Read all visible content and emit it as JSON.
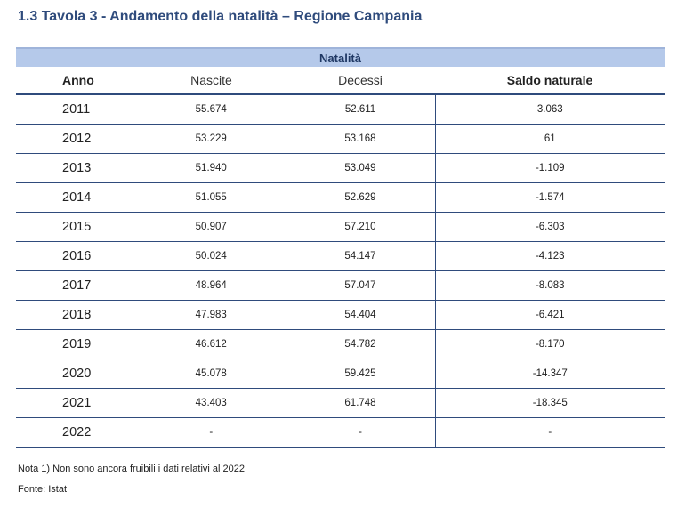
{
  "title": "1.3 Tavola 3 - Andamento della natalità – Regione Campania",
  "table": {
    "group_header": "Natalità",
    "columns": [
      "Anno",
      "Nascite",
      "Decessi",
      "Saldo naturale"
    ],
    "rows": [
      {
        "anno": "2011",
        "nascite": "55.674",
        "decessi": "52.611",
        "saldo": "3.063"
      },
      {
        "anno": "2012",
        "nascite": "53.229",
        "decessi": "53.168",
        "saldo": "61"
      },
      {
        "anno": "2013",
        "nascite": "51.940",
        "decessi": "53.049",
        "saldo": "-1.109"
      },
      {
        "anno": "2014",
        "nascite": "51.055",
        "decessi": "52.629",
        "saldo": "-1.574"
      },
      {
        "anno": "2015",
        "nascite": "50.907",
        "decessi": "57.210",
        "saldo": "-6.303"
      },
      {
        "anno": "2016",
        "nascite": "50.024",
        "decessi": "54.147",
        "saldo": "-4.123"
      },
      {
        "anno": "2017",
        "nascite": "48.964",
        "decessi": "57.047",
        "saldo": "-8.083"
      },
      {
        "anno": "2018",
        "nascite": "47.983",
        "decessi": "54.404",
        "saldo": "-6.421"
      },
      {
        "anno": "2019",
        "nascite": "46.612",
        "decessi": "54.782",
        "saldo": "-8.170"
      },
      {
        "anno": "2020",
        "nascite": "45.078",
        "decessi": "59.425",
        "saldo": "-14.347"
      },
      {
        "anno": "2021",
        "nascite": "43.403",
        "decessi": "61.748",
        "saldo": "-18.345"
      },
      {
        "anno": "2022",
        "nascite": "-",
        "decessi": "-",
        "saldo": "-"
      }
    ]
  },
  "note": "Nota 1) Non sono ancora fruibili i dati relativi al 2022",
  "source": "Fonte: Istat",
  "colors": {
    "title": "#2f4b7c",
    "group_header_bg": "#b5c9ea",
    "rule": "#2f4b7c"
  }
}
